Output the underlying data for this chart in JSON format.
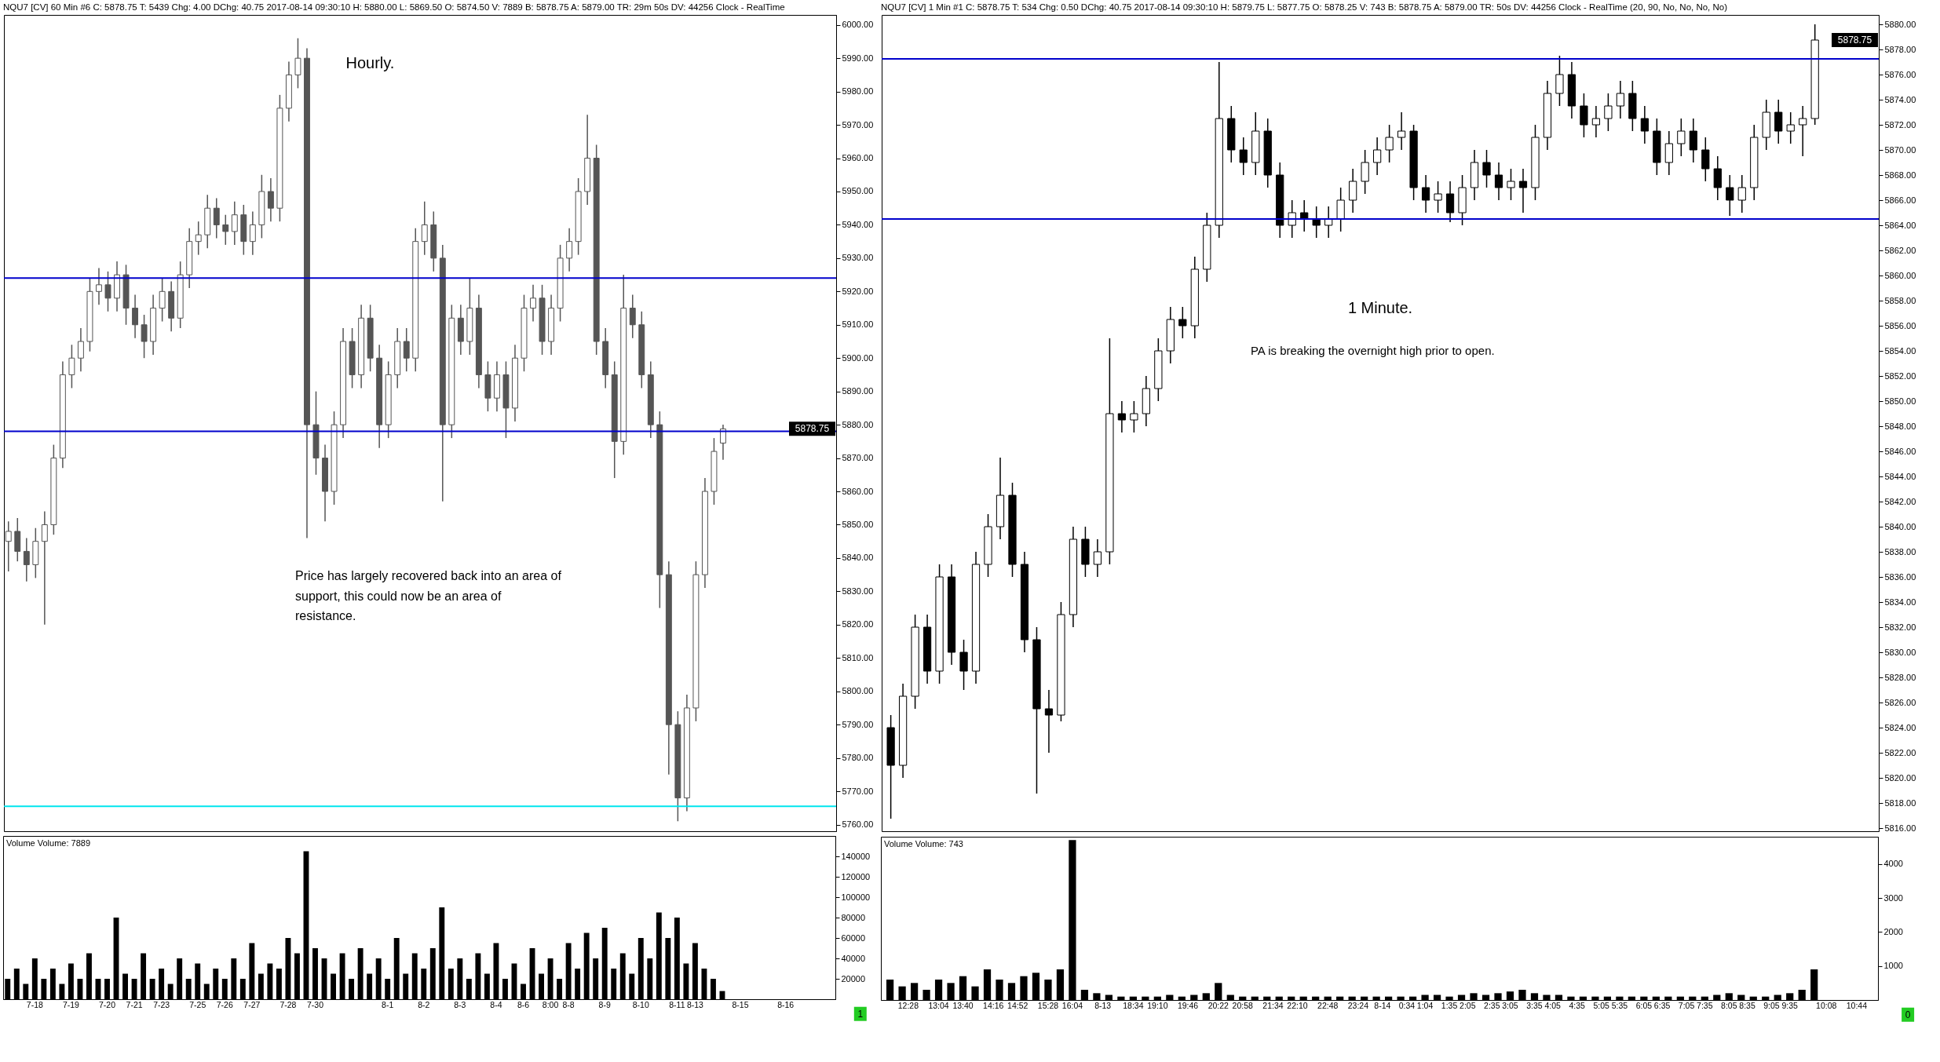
{
  "chart_data": [
    {
      "type": "candlestick",
      "title": "NQU7 [CV] 60 Min #6 C: 5878.75 T: 5439 Chg: 4.00 DChg: 40.75 2017-08-14 09:30:10 H: 5880.00 L: 5869.50 O: 5874.50 V: 7889 B: 5878.75 A: 5879.00 TR: 29m 50s DV: 44256 Clock - RealTime",
      "color": "#555555",
      "tick_labels": "y",
      "annotations": [
        "Hourly.",
        "Price has largely recovered back into an area of support, this could now be an area of resistance.",
        "5878.75"
      ],
      "categories": [
        null,
        null,
        null,
        null,
        null,
        null,
        null,
        null,
        null,
        null,
        null,
        null,
        null,
        null,
        null,
        null,
        null,
        null,
        null,
        null,
        null,
        null,
        null,
        null,
        null,
        null,
        null,
        null,
        null,
        null,
        null,
        null,
        null,
        null,
        null,
        null,
        null,
        null,
        null,
        null,
        null,
        null,
        null,
        null,
        null,
        null,
        null,
        null,
        null,
        null,
        null,
        null,
        null,
        null,
        null,
        null,
        null,
        null,
        null,
        null,
        null,
        null,
        null,
        null,
        null,
        null,
        null,
        null,
        null,
        null,
        null,
        null,
        null,
        null,
        null,
        null,
        null,
        null,
        null,
        null,
        null,
        null,
        null,
        null,
        null,
        null,
        null,
        null,
        null,
        null,
        null,
        null
      ],
      "ohlc": [
        [
          5845,
          5851,
          5836,
          5848
        ],
        [
          5848,
          5852,
          5839,
          5842
        ],
        [
          5842,
          5846,
          5833,
          5838
        ],
        [
          5838,
          5849,
          5834,
          5845
        ],
        [
          5845,
          5854,
          5820,
          5850
        ],
        [
          5850,
          5874,
          5847,
          5870
        ],
        [
          5870,
          5899,
          5867,
          5895
        ],
        [
          5895,
          5904,
          5891,
          5900
        ],
        [
          5900,
          5909,
          5896,
          5905
        ],
        [
          5905,
          5924,
          5902,
          5920
        ],
        [
          5920,
          5927,
          5916,
          5922
        ],
        [
          5922,
          5926,
          5914,
          5918
        ],
        [
          5918,
          5929,
          5914,
          5925
        ],
        [
          5925,
          5928,
          5910,
          5915
        ],
        [
          5915,
          5919,
          5906,
          5910
        ],
        [
          5910,
          5913,
          5900,
          5905
        ],
        [
          5905,
          5919,
          5901,
          5915
        ],
        [
          5915,
          5924,
          5911,
          5920
        ],
        [
          5920,
          5923,
          5908,
          5912
        ],
        [
          5912,
          5929,
          5909,
          5925
        ],
        [
          5925,
          5939,
          5921,
          5935
        ],
        [
          5935,
          5941,
          5931,
          5937
        ],
        [
          5937,
          5949,
          5933,
          5945
        ],
        [
          5945,
          5948,
          5936,
          5940
        ],
        [
          5940,
          5943,
          5934,
          5938
        ],
        [
          5938,
          5947,
          5934,
          5943
        ],
        [
          5943,
          5946,
          5931,
          5935
        ],
        [
          5935,
          5944,
          5931,
          5940
        ],
        [
          5940,
          5955,
          5936,
          5950
        ],
        [
          5950,
          5954,
          5941,
          5945
        ],
        [
          5945,
          5979,
          5941,
          5975
        ],
        [
          5975,
          5989,
          5971,
          5985
        ],
        [
          5985,
          5996,
          5981,
          5990
        ],
        [
          5990,
          5993,
          5846,
          5880
        ],
        [
          5880,
          5890,
          5865,
          5870
        ],
        [
          5870,
          5874,
          5851,
          5860
        ],
        [
          5860,
          5884,
          5856,
          5880
        ],
        [
          5880,
          5909,
          5876,
          5905
        ],
        [
          5905,
          5909,
          5891,
          5895
        ],
        [
          5895,
          5916,
          5891,
          5912
        ],
        [
          5912,
          5916,
          5896,
          5900
        ],
        [
          5900,
          5904,
          5873,
          5880
        ],
        [
          5880,
          5899,
          5876,
          5895
        ],
        [
          5895,
          5909,
          5891,
          5905
        ],
        [
          5905,
          5909,
          5896,
          5900
        ],
        [
          5900,
          5939,
          5896,
          5935
        ],
        [
          5935,
          5947,
          5931,
          5940
        ],
        [
          5940,
          5944,
          5926,
          5930
        ],
        [
          5930,
          5934,
          5857,
          5880
        ],
        [
          5880,
          5916,
          5876,
          5912
        ],
        [
          5912,
          5916,
          5901,
          5905
        ],
        [
          5905,
          5924,
          5901,
          5915
        ],
        [
          5915,
          5919,
          5891,
          5895
        ],
        [
          5895,
          5899,
          5884,
          5888
        ],
        [
          5888,
          5899,
          5884,
          5895
        ],
        [
          5895,
          5899,
          5876,
          5885
        ],
        [
          5885,
          5904,
          5881,
          5900
        ],
        [
          5900,
          5919,
          5896,
          5915
        ],
        [
          5915,
          5922,
          5911,
          5918
        ],
        [
          5918,
          5922,
          5901,
          5905
        ],
        [
          5905,
          5919,
          5901,
          5915
        ],
        [
          5915,
          5934,
          5911,
          5930
        ],
        [
          5930,
          5939,
          5926,
          5935
        ],
        [
          5935,
          5954,
          5931,
          5950
        ],
        [
          5950,
          5973,
          5946,
          5960
        ],
        [
          5960,
          5964,
          5901,
          5905
        ],
        [
          5905,
          5909,
          5891,
          5895
        ],
        [
          5895,
          5899,
          5864,
          5875
        ],
        [
          5875,
          5925,
          5871,
          5915
        ],
        [
          5915,
          5919,
          5906,
          5910
        ],
        [
          5910,
          5914,
          5891,
          5895
        ],
        [
          5895,
          5899,
          5876,
          5880
        ],
        [
          5880,
          5884,
          5825,
          5835
        ],
        [
          5835,
          5839,
          5775,
          5790
        ],
        [
          5790,
          5794,
          5761,
          5768
        ],
        [
          5768,
          5799,
          5764,
          5795
        ],
        [
          5795,
          5839,
          5791,
          5835
        ],
        [
          5835,
          5864,
          5831,
          5860
        ],
        [
          5860,
          5876,
          5856,
          5872
        ],
        [
          5874.5,
          5880,
          5869.5,
          5878.75
        ],
        null,
        null,
        null,
        null,
        null,
        null,
        null,
        null,
        null,
        null,
        null,
        null
      ],
      "ylim": [
        5758,
        6003
      ],
      "yticks": [
        {
          "value": 5760,
          "label": "5760.00"
        },
        {
          "value": 5770,
          "label": "5770.00"
        },
        {
          "value": 5780,
          "label": "5780.00"
        },
        {
          "value": 5790,
          "label": "5790.00"
        },
        {
          "value": 5800,
          "label": "5800.00"
        },
        {
          "value": 5810,
          "label": "5810.00"
        },
        {
          "value": 5820,
          "label": "5820.00"
        },
        {
          "value": 5830,
          "label": "5830.00"
        },
        {
          "value": 5840,
          "label": "5840.00"
        },
        {
          "value": 5850,
          "label": "5850.00"
        },
        {
          "value": 5860,
          "label": "5860.00"
        },
        {
          "value": 5870,
          "label": "5870.00"
        },
        {
          "value": 5880,
          "label": "5880.00"
        },
        {
          "value": 5890,
          "label": "5890.00"
        },
        {
          "value": 5900,
          "label": "5900.00"
        },
        {
          "value": 5910,
          "label": "5910.00"
        },
        {
          "value": 5920,
          "label": "5920.00"
        },
        {
          "value": 5930,
          "label": "5930.00"
        },
        {
          "value": 5940,
          "label": "5940.00"
        },
        {
          "value": 5950,
          "label": "5950.00"
        },
        {
          "value": 5960,
          "label": "5960.00"
        },
        {
          "value": 5970,
          "label": "5970.00"
        },
        {
          "value": 5980,
          "label": "5980.00"
        },
        {
          "value": 5990,
          "label": "5990.00"
        },
        {
          "value": 6000,
          "label": "6000.00"
        }
      ],
      "ref_lines": [
        {
          "axis": "y",
          "value": 5924,
          "color": "#0000cc"
        },
        {
          "axis": "y",
          "value": 5878,
          "color": "#0000cc"
        },
        {
          "axis": "y",
          "value": 5765.5,
          "color": "#00e5ee"
        }
      ]
    },
    {
      "type": "bar",
      "title": "Volume Volume: 7889",
      "color": "#000000",
      "annotations": [
        "1"
      ],
      "categories": [
        null,
        null,
        null,
        "7-18",
        null,
        null,
        null,
        "7-19",
        null,
        null,
        null,
        "7-20",
        null,
        null,
        "7-21",
        null,
        null,
        "7-23",
        null,
        null,
        null,
        "7-25",
        null,
        null,
        "7-26",
        null,
        null,
        "7-27",
        null,
        null,
        null,
        "7-28",
        null,
        null,
        "7-30",
        null,
        null,
        null,
        null,
        null,
        null,
        null,
        "8-1",
        null,
        null,
        null,
        "8-2",
        null,
        null,
        null,
        "8-3",
        null,
        null,
        null,
        "8-4",
        null,
        null,
        "8-6",
        null,
        null,
        "8:00",
        null,
        "8-8",
        null,
        null,
        null,
        "8-9",
        null,
        null,
        null,
        "8-10",
        null,
        null,
        null,
        "8-11",
        null,
        "8-13",
        null,
        null,
        null,
        null,
        "8-15",
        null,
        null,
        null,
        null,
        "8-16",
        null,
        null,
        null,
        null,
        null
      ],
      "values": [
        20000,
        30000,
        15000,
        40000,
        20000,
        30000,
        15000,
        35000,
        20000,
        45000,
        20000,
        20000,
        80000,
        25000,
        20000,
        45000,
        20000,
        30000,
        15000,
        40000,
        20000,
        35000,
        15000,
        30000,
        20000,
        40000,
        20000,
        55000,
        25000,
        35000,
        30000,
        60000,
        45000,
        145000,
        50000,
        40000,
        25000,
        45000,
        20000,
        50000,
        25000,
        40000,
        20000,
        60000,
        25000,
        45000,
        30000,
        50000,
        90000,
        30000,
        40000,
        20000,
        45000,
        25000,
        55000,
        20000,
        35000,
        15000,
        50000,
        25000,
        40000,
        20000,
        55000,
        30000,
        65000,
        40000,
        70000,
        30000,
        45000,
        25000,
        60000,
        40000,
        85000,
        60000,
        80000,
        35000,
        55000,
        30000,
        20000,
        8000,
        null,
        null,
        null,
        null,
        null,
        null,
        null,
        null,
        null,
        null,
        null,
        null
      ],
      "ylim": [
        0,
        160000
      ],
      "yticks": [
        20000,
        40000,
        60000,
        80000,
        100000,
        120000,
        140000
      ]
    },
    {
      "type": "candlestick",
      "title": "NQU7 [CV] 1 Min #1 C: 5878.75 T: 534 Chg: 0.50 DChg: 40.75 2017-08-14 09:30:10 H: 5879.75 L: 5877.75 O: 5878.25 V: 743 B: 5878.75 A: 5879.00 TR: 50s DV: 44256 Clock - RealTime (20, 90, No, No, No, No)",
      "color": "#000000",
      "tick_labels": "y",
      "annotations": [
        "1 Minute.",
        "PA is breaking the overnight high prior to open.",
        "5878.75"
      ],
      "categories": [
        null,
        null,
        null,
        null,
        null,
        null,
        null,
        null,
        null,
        null,
        null,
        null,
        null,
        null,
        null,
        null,
        null,
        null,
        null,
        null,
        null,
        null,
        null,
        null,
        null,
        null,
        null,
        null,
        null,
        null,
        null,
        null,
        null,
        null,
        null,
        null,
        null,
        null,
        null,
        null,
        null,
        null,
        null,
        null,
        null,
        null,
        null,
        null,
        null,
        null,
        null,
        null,
        null,
        null,
        null,
        null,
        null,
        null,
        null,
        null,
        null,
        null,
        null,
        null,
        null,
        null,
        null,
        null,
        null,
        null,
        null,
        null,
        null,
        null,
        null,
        null,
        null,
        null,
        null,
        null,
        null,
        null,
        null,
        null,
        null,
        null,
        null,
        null,
        null,
        null,
        null,
        null,
        null,
        null,
        null,
        null,
        null,
        null,
        null,
        null,
        null,
        null,
        null,
        null,
        null,
        null,
        null,
        null,
        null,
        null,
        null,
        null,
        null,
        null,
        null,
        null,
        null,
        null,
        null,
        null,
        null,
        null,
        null,
        null,
        null,
        null,
        null,
        null,
        null,
        null,
        null,
        null,
        null,
        null,
        null,
        null,
        null,
        null,
        null,
        null,
        null,
        null,
        null,
        null,
        null,
        null,
        null,
        null,
        null,
        null,
        null,
        null,
        null,
        null,
        null,
        null,
        null,
        null,
        null,
        null,
        null,
        null,
        null,
        null
      ],
      "ohlc": [
        null,
        [
          5824,
          5825,
          5816.75,
          5821
        ],
        null,
        [
          5821,
          5827.5,
          5820,
          5826.5
        ],
        null,
        [
          5826.5,
          5833,
          5825.5,
          5832
        ],
        null,
        [
          5832,
          5833,
          5827.5,
          5828.5
        ],
        null,
        [
          5828.5,
          5837,
          5827.5,
          5836
        ],
        null,
        [
          5836,
          5837,
          5829,
          5830
        ],
        null,
        [
          5830,
          5831,
          5827,
          5828.5
        ],
        null,
        [
          5828.5,
          5838,
          5827.5,
          5837
        ],
        null,
        [
          5837,
          5841,
          5836,
          5840
        ],
        null,
        [
          5840,
          5845.5,
          5839,
          5842.5
        ],
        null,
        [
          5842.5,
          5843.5,
          5836,
          5837
        ],
        null,
        [
          5837,
          5838,
          5830,
          5831
        ],
        null,
        [
          5831,
          5832,
          5818.75,
          5825.5
        ],
        null,
        [
          5825.5,
          5827,
          5822,
          5825
        ],
        null,
        [
          5825,
          5834,
          5824.5,
          5833
        ],
        null,
        [
          5833,
          5840,
          5832,
          5839
        ],
        null,
        [
          5839,
          5840,
          5836,
          5837
        ],
        null,
        [
          5837,
          5839,
          5836,
          5838
        ],
        null,
        [
          5838,
          5855,
          5837,
          5849
        ],
        null,
        [
          5849,
          5850,
          5847.5,
          5848.5
        ],
        null,
        [
          5848.5,
          5850,
          5847.5,
          5849
        ],
        null,
        [
          5849,
          5852,
          5848,
          5851
        ],
        null,
        [
          5851,
          5855,
          5850,
          5854
        ],
        null,
        [
          5854,
          5857.5,
          5853,
          5856.5
        ],
        null,
        [
          5856.5,
          5857.5,
          5855,
          5856
        ],
        null,
        [
          5856,
          5861.5,
          5855,
          5860.5
        ],
        null,
        [
          5860.5,
          5865,
          5859.5,
          5864
        ],
        null,
        [
          5864,
          5877,
          5863,
          5872.5
        ],
        null,
        [
          5872.5,
          5873.5,
          5869,
          5870
        ],
        null,
        [
          5870,
          5871,
          5868,
          5869
        ],
        null,
        [
          5869,
          5873,
          5868,
          5871.5
        ],
        null,
        [
          5871.5,
          5872.5,
          5867,
          5868
        ],
        null,
        [
          5868,
          5869,
          5863,
          5864
        ],
        null,
        [
          5864,
          5866,
          5863,
          5865
        ],
        null,
        [
          5865,
          5866,
          5863.5,
          5864.5
        ],
        null,
        [
          5864.5,
          5865.5,
          5863,
          5864
        ],
        null,
        [
          5864,
          5865.5,
          5863,
          5864.5
        ],
        null,
        [
          5864.5,
          5867,
          5863.5,
          5866
        ],
        null,
        [
          5866,
          5868.5,
          5865,
          5867.5
        ],
        null,
        [
          5867.5,
          5870,
          5866.5,
          5869
        ],
        null,
        [
          5869,
          5871,
          5868,
          5870
        ],
        null,
        [
          5870,
          5872,
          5869,
          5871
        ],
        null,
        [
          5871,
          5873,
          5870,
          5871.5
        ],
        null,
        [
          5871.5,
          5872,
          5866,
          5867
        ],
        null,
        [
          5867,
          5868,
          5865,
          5866
        ],
        null,
        [
          5866,
          5867.5,
          5865,
          5866.5
        ],
        null,
        [
          5866.5,
          5867.5,
          5864.25,
          5865
        ],
        null,
        [
          5865,
          5868,
          5864,
          5867
        ],
        null,
        [
          5867,
          5870,
          5866,
          5869
        ],
        null,
        [
          5869,
          5870,
          5867,
          5868
        ],
        null,
        [
          5868,
          5869,
          5866,
          5867
        ],
        null,
        [
          5867,
          5868.5,
          5866,
          5867.5
        ],
        null,
        [
          5867.5,
          5868.5,
          5865,
          5867
        ],
        null,
        [
          5867,
          5872,
          5866,
          5871
        ],
        null,
        [
          5871,
          5875.5,
          5870,
          5874.5
        ],
        null,
        [
          5874.5,
          5877.5,
          5873.5,
          5876
        ],
        null,
        [
          5876,
          5877,
          5872.5,
          5873.5
        ],
        null,
        [
          5873.5,
          5874.5,
          5871,
          5872
        ],
        null,
        [
          5872,
          5873.5,
          5871,
          5872.5
        ],
        null,
        [
          5872.5,
          5874.5,
          5871.5,
          5873.5
        ],
        null,
        [
          5873.5,
          5875.5,
          5872.5,
          5874.5
        ],
        null,
        [
          5874.5,
          5875.5,
          5871.5,
          5872.5
        ],
        null,
        [
          5872.5,
          5873.5,
          5870.5,
          5871.5
        ],
        null,
        [
          5871.5,
          5872.5,
          5868,
          5869
        ],
        null,
        [
          5869,
          5871.5,
          5868,
          5870.5
        ],
        null,
        [
          5870.5,
          5872.5,
          5869.5,
          5871.5
        ],
        null,
        [
          5871.5,
          5872.5,
          5869,
          5870
        ],
        null,
        [
          5870,
          5871,
          5867.5,
          5868.5
        ],
        null,
        [
          5868.5,
          5869.5,
          5866,
          5867
        ],
        null,
        [
          5867,
          5868,
          5864.75,
          5866
        ],
        null,
        [
          5866,
          5868,
          5865,
          5867
        ],
        null,
        [
          5867,
          5872,
          5866,
          5871
        ],
        null,
        [
          5871,
          5874,
          5870,
          5873
        ],
        null,
        [
          5873,
          5874,
          5870.5,
          5871.5
        ],
        null,
        [
          5871.5,
          5873,
          5870.5,
          5872
        ],
        null,
        [
          5872,
          5873.5,
          5869.5,
          5872.5
        ],
        null,
        [
          5872.5,
          5880,
          5872,
          5878.75
        ],
        null,
        null,
        null,
        null,
        null,
        null,
        null,
        null,
        null,
        null
      ],
      "ylim": [
        5815.75,
        5880.75
      ],
      "yticks": [
        {
          "value": 5816,
          "label": "5816.00"
        },
        {
          "value": 5818,
          "label": "5818.00"
        },
        {
          "value": 5820,
          "label": "5820.00"
        },
        {
          "value": 5822,
          "label": "5822.00"
        },
        {
          "value": 5824,
          "label": "5824.00"
        },
        {
          "value": 5826,
          "label": "5826.00"
        },
        {
          "value": 5828,
          "label": "5828.00"
        },
        {
          "value": 5830,
          "label": "5830.00"
        },
        {
          "value": 5832,
          "label": "5832.00"
        },
        {
          "value": 5834,
          "label": "5834.00"
        },
        {
          "value": 5836,
          "label": "5836.00"
        },
        {
          "value": 5838,
          "label": "5838.00"
        },
        {
          "value": 5840,
          "label": "5840.00"
        },
        {
          "value": 5842,
          "label": "5842.00"
        },
        {
          "value": 5844,
          "label": "5844.00"
        },
        {
          "value": 5846,
          "label": "5846.00"
        },
        {
          "value": 5848,
          "label": "5848.00"
        },
        {
          "value": 5850,
          "label": "5850.00"
        },
        {
          "value": 5852,
          "label": "5852.00"
        },
        {
          "value": 5854,
          "label": "5854.00"
        },
        {
          "value": 5856,
          "label": "5856.00"
        },
        {
          "value": 5858,
          "label": "5858.00"
        },
        {
          "value": 5860,
          "label": "5860.00"
        },
        {
          "value": 5862,
          "label": "5862.00"
        },
        {
          "value": 5864,
          "label": "5864.00"
        },
        {
          "value": 5866,
          "label": "5866.00"
        },
        {
          "value": 5868,
          "label": "5868.00"
        },
        {
          "value": 5870,
          "label": "5870.00"
        },
        {
          "value": 5872,
          "label": "5872.00"
        },
        {
          "value": 5874,
          "label": "5874.00"
        },
        {
          "value": 5876,
          "label": "5876.00"
        },
        {
          "value": 5878,
          "label": "5878.00"
        },
        {
          "value": 5880,
          "label": "5880.00"
        }
      ],
      "ref_lines": [
        {
          "axis": "y",
          "value": 5877.25,
          "color": "#0000cc"
        },
        {
          "axis": "y",
          "value": 5864.5,
          "color": "#0000cc"
        }
      ]
    },
    {
      "type": "bar",
      "title": "Volume Volume: 743",
      "color": "#000000",
      "annotations": [
        "0"
      ],
      "categories": [
        null,
        null,
        null,
        null,
        "12:28",
        null,
        null,
        null,
        null,
        "13:04",
        null,
        null,
        null,
        "13:40",
        null,
        null,
        null,
        null,
        "14:16",
        null,
        null,
        null,
        "14:52",
        null,
        null,
        null,
        null,
        "15:28",
        null,
        null,
        null,
        "16:04",
        null,
        null,
        null,
        null,
        "8-13",
        null,
        null,
        null,
        null,
        "18:34",
        null,
        null,
        null,
        "19:10",
        null,
        null,
        null,
        null,
        "19:46",
        null,
        null,
        null,
        null,
        "20:22",
        null,
        null,
        null,
        "20:58",
        null,
        null,
        null,
        null,
        "21:34",
        null,
        null,
        null,
        "22:10",
        null,
        null,
        null,
        null,
        "22:48",
        null,
        null,
        null,
        null,
        "23:24",
        null,
        null,
        null,
        "8-14",
        null,
        null,
        null,
        "0:34",
        null,
        null,
        "1:04",
        null,
        null,
        null,
        "1:35",
        null,
        null,
        "2:05",
        null,
        null,
        null,
        "2:35",
        null,
        null,
        "3:05",
        null,
        null,
        null,
        "3:35",
        null,
        null,
        "4:05",
        null,
        null,
        null,
        "4:35",
        null,
        null,
        null,
        "5:05",
        null,
        null,
        "5:35",
        null,
        null,
        null,
        "6:05",
        null,
        null,
        "6:35",
        null,
        null,
        null,
        "7:05",
        null,
        null,
        "7:35",
        null,
        null,
        null,
        "8:05",
        null,
        null,
        "8:35",
        null,
        null,
        null,
        "9:05",
        null,
        null,
        "9:35",
        null,
        null,
        null,
        null,
        null,
        "10:08",
        null,
        null,
        null,
        null,
        "10:44",
        null,
        null,
        null
      ],
      "values": [
        null,
        600,
        null,
        400,
        null,
        500,
        null,
        300,
        null,
        600,
        null,
        500,
        null,
        700,
        null,
        400,
        null,
        900,
        null,
        600,
        null,
        500,
        null,
        700,
        null,
        800,
        null,
        600,
        null,
        900,
        null,
        4700,
        null,
        300,
        null,
        200,
        null,
        150,
        null,
        100,
        null,
        100,
        null,
        100,
        null,
        100,
        null,
        150,
        null,
        100,
        null,
        150,
        null,
        200,
        null,
        500,
        null,
        150,
        null,
        100,
        null,
        100,
        null,
        100,
        null,
        100,
        null,
        100,
        null,
        100,
        null,
        100,
        null,
        100,
        null,
        100,
        null,
        100,
        null,
        100,
        null,
        100,
        null,
        100,
        null,
        100,
        null,
        100,
        null,
        150,
        null,
        150,
        null,
        100,
        null,
        150,
        null,
        200,
        null,
        150,
        null,
        200,
        null,
        250,
        null,
        300,
        null,
        200,
        null,
        150,
        null,
        150,
        null,
        100,
        null,
        100,
        null,
        100,
        null,
        100,
        null,
        100,
        null,
        100,
        null,
        100,
        null,
        100,
        null,
        100,
        null,
        100,
        null,
        100,
        null,
        100,
        null,
        150,
        null,
        200,
        null,
        150,
        null,
        100,
        null,
        100,
        null,
        150,
        null,
        200,
        null,
        300,
        null,
        900,
        null,
        null,
        null,
        null,
        null,
        null,
        null,
        null,
        null,
        null
      ],
      "ylim": [
        0,
        4800
      ],
      "yticks": [
        1000,
        2000,
        3000,
        4000
      ]
    }
  ]
}
